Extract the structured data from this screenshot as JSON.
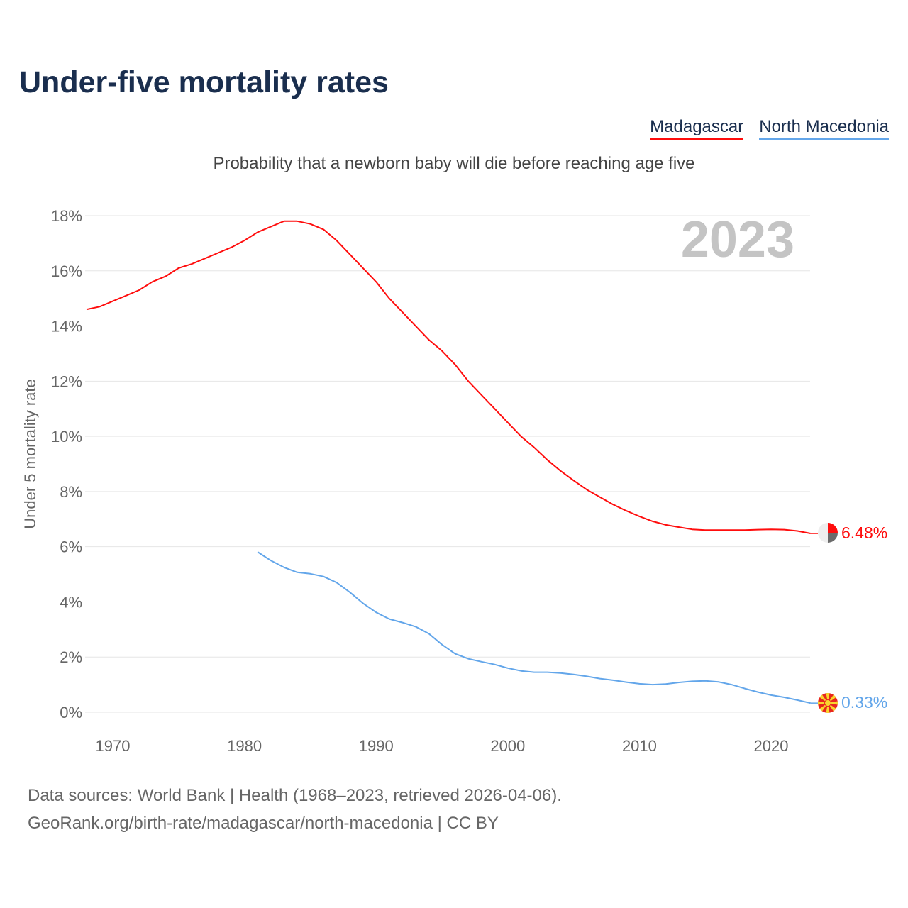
{
  "header": {
    "title": "Under-five mortality rates",
    "subtitle": "Probability that a newborn baby will die before reaching age five"
  },
  "legend": [
    {
      "label": "Madagascar",
      "color": "#ff0d0d"
    },
    {
      "label": "North Macedonia",
      "color": "#63a6ea"
    }
  ],
  "footer": {
    "line1": "Data sources: World Bank | Health (1968–2023, retrieved 2026-04-06).",
    "line2": "GeoRank.org/birth-rate/madagascar/north-macedonia | CC BY"
  },
  "chart_data": {
    "type": "line",
    "title": "Under-five mortality rates",
    "ylabel": "Under 5 mortality rate",
    "xlabel": "",
    "year_watermark": "2023",
    "xlim": [
      1968,
      2023
    ],
    "ylim": [
      0,
      18
    ],
    "x_ticks": [
      1970,
      1980,
      1990,
      2000,
      2010,
      2020
    ],
    "y_ticks": [
      "0%",
      "2%",
      "4%",
      "6%",
      "8%",
      "10%",
      "12%",
      "14%",
      "16%",
      "18%"
    ],
    "y_tick_values": [
      0,
      2,
      4,
      6,
      8,
      10,
      12,
      14,
      16,
      18
    ],
    "grid": true,
    "legend_placement": "top-right",
    "series": [
      {
        "name": "Madagascar",
        "color": "#ff0d0d",
        "end_label": "6.48%",
        "start_year": 1968,
        "values": [
          14.6,
          14.7,
          14.9,
          15.1,
          15.3,
          15.6,
          15.8,
          16.1,
          16.25,
          16.45,
          16.65,
          16.85,
          17.1,
          17.4,
          17.6,
          17.8,
          17.8,
          17.7,
          17.5,
          17.1,
          16.6,
          16.1,
          15.6,
          15.0,
          14.5,
          14.0,
          13.5,
          13.1,
          12.6,
          12.0,
          11.5,
          11.0,
          10.5,
          10.0,
          9.6,
          9.15,
          8.75,
          8.4,
          8.07,
          7.8,
          7.53,
          7.3,
          7.1,
          6.92,
          6.79,
          6.71,
          6.63,
          6.6,
          6.6,
          6.6,
          6.6,
          6.62,
          6.63,
          6.62,
          6.57,
          6.48
        ]
      },
      {
        "name": "North Macedonia",
        "color": "#63a6ea",
        "end_label": "0.33%",
        "start_year": 1981,
        "values": [
          5.81,
          5.5,
          5.25,
          5.07,
          5.02,
          4.92,
          4.7,
          4.35,
          3.95,
          3.62,
          3.38,
          3.25,
          3.1,
          2.85,
          2.45,
          2.12,
          1.94,
          1.83,
          1.73,
          1.6,
          1.5,
          1.45,
          1.45,
          1.42,
          1.37,
          1.3,
          1.22,
          1.16,
          1.09,
          1.03,
          1.0,
          1.02,
          1.08,
          1.12,
          1.14,
          1.1,
          1.0,
          0.86,
          0.73,
          0.62,
          0.54,
          0.44,
          0.33
        ]
      }
    ]
  }
}
